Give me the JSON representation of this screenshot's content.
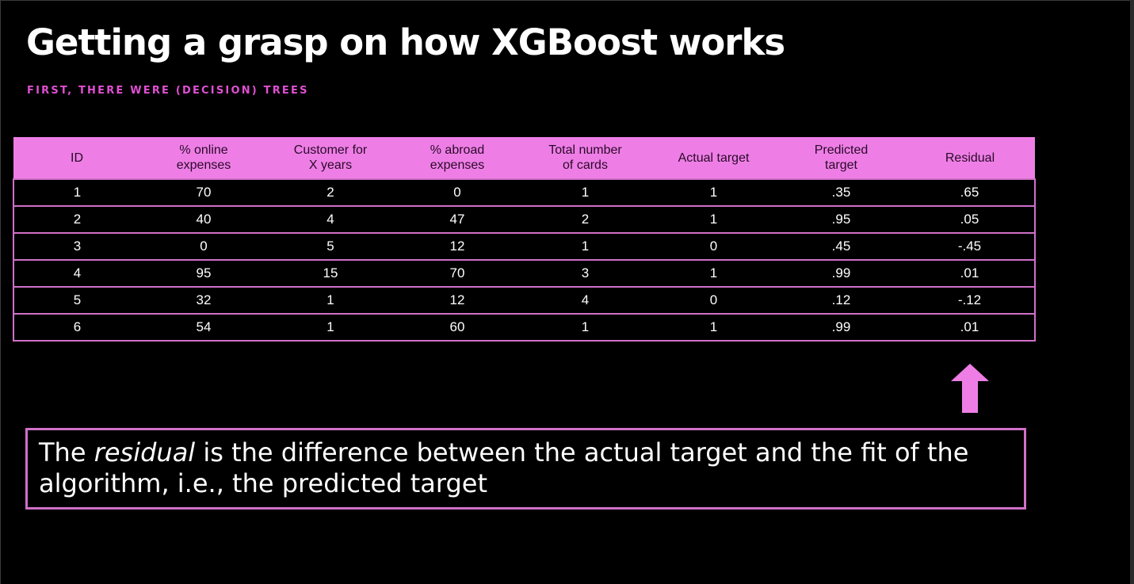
{
  "slide": {
    "title": "Getting a grasp on how XGBoost works",
    "subtitle": "FIRST, THERE WERE (DECISION) TREES"
  },
  "table": {
    "headers": [
      "ID",
      "% online\nexpenses",
      "Customer for\nX years",
      "% abroad\nexpenses",
      "Total number\nof cards",
      "Actual target",
      "Predicted\ntarget",
      "Residual"
    ],
    "rows": [
      [
        "1",
        "70",
        "2",
        "0",
        "1",
        "1",
        ".35",
        ".65"
      ],
      [
        "2",
        "40",
        "4",
        "47",
        "2",
        "1",
        ".95",
        ".05"
      ],
      [
        "3",
        "0",
        "5",
        "12",
        "1",
        "0",
        ".45",
        "-.45"
      ],
      [
        "4",
        "95",
        "15",
        "70",
        "3",
        "1",
        ".99",
        ".01"
      ],
      [
        "5",
        "32",
        "1",
        "12",
        "4",
        "0",
        ".12",
        "-.12"
      ],
      [
        "6",
        "54",
        "1",
        "60",
        "1",
        "1",
        ".99",
        ".01"
      ]
    ]
  },
  "callout": {
    "prefix": "The ",
    "emphasis": "residual",
    "suffix": " is the difference between the actual target and the fit of the algorithm, i.e., the predicted target"
  },
  "colors": {
    "accent_pink": "#ee7ee6",
    "subtitle_pink": "#e04fd3",
    "background": "#000000"
  },
  "icons": {
    "arrow": "up-arrow-icon"
  }
}
